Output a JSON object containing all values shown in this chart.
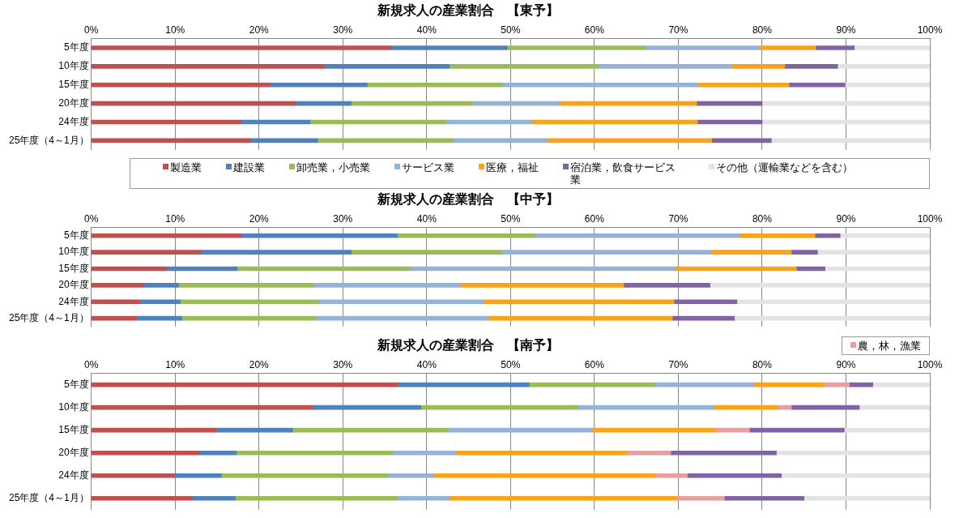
{
  "chart_data": [
    {
      "type": "bar",
      "orientation": "horizontal",
      "stacked": true,
      "title": "新規求人の産業割合　【東予】",
      "categories": [
        "5年度",
        "10年度",
        "15年度",
        "20年度",
        "24年度",
        "25年度（4～1月）"
      ],
      "series": [
        {
          "name": "製造業",
          "color": "#c0504d",
          "values": [
            35.8,
            27.8,
            21.3,
            24.4,
            17.9,
            19.0
          ]
        },
        {
          "name": "建設業",
          "color": "#4f81bd",
          "values": [
            13.8,
            14.9,
            11.6,
            6.6,
            8.2,
            8.0
          ]
        },
        {
          "name": "卸売業，小売業",
          "color": "#9bbb59",
          "values": [
            16.5,
            17.8,
            16.1,
            14.4,
            16.2,
            16.2
          ]
        },
        {
          "name": "サービス業",
          "color": "#95b3d7",
          "values": [
            13.6,
            15.8,
            23.4,
            10.5,
            10.2,
            11.2
          ]
        },
        {
          "name": "医療，福祉",
          "color": "#f9a21b",
          "values": [
            6.7,
            6.4,
            10.8,
            16.3,
            19.8,
            19.6
          ]
        },
        {
          "name": "宿泊業，飲食サービス業",
          "color": "#8064a2",
          "values": [
            4.6,
            6.3,
            6.7,
            7.8,
            7.7,
            7.1
          ]
        },
        {
          "name": "その他（運輸業などを含む）",
          "color": "#e3e3e3",
          "values": [
            9.0,
            11.0,
            10.1,
            20.0,
            20.0,
            18.9
          ]
        }
      ],
      "xlim": [
        0,
        100
      ],
      "xticks": [
        {
          "value": 0,
          "label": "0%"
        },
        {
          "value": 10,
          "label": "10%"
        },
        {
          "value": 20,
          "label": "20%"
        },
        {
          "value": 30,
          "label": "30%"
        },
        {
          "value": 40,
          "label": "40%"
        },
        {
          "value": 50,
          "label": "50%"
        },
        {
          "value": 60,
          "label": "60%"
        },
        {
          "value": 70,
          "label": "70%"
        },
        {
          "value": 80,
          "label": "80%"
        },
        {
          "value": 90,
          "label": "90%"
        },
        {
          "value": 100,
          "label": "100%"
        }
      ],
      "grid": "x",
      "legend": "bottom"
    },
    {
      "type": "bar",
      "orientation": "horizontal",
      "stacked": true,
      "title": "新規求人の産業割合　【中予】",
      "categories": [
        "5年度",
        "10年度",
        "15年度",
        "20年度",
        "24年度",
        "25年度（4～1月）"
      ],
      "series": [
        {
          "color": "#c0504d",
          "values": [
            17.9,
            13.0,
            9.0,
            6.2,
            5.8,
            5.4
          ]
        },
        {
          "color": "#4f81bd",
          "values": [
            18.6,
            18.0,
            8.4,
            4.2,
            4.8,
            5.4
          ]
        },
        {
          "color": "#9bbb59",
          "values": [
            16.5,
            18.0,
            20.7,
            16.1,
            16.5,
            16.0
          ]
        },
        {
          "color": "#95b3d7",
          "values": [
            24.3,
            24.8,
            31.5,
            17.5,
            19.7,
            20.5
          ]
        },
        {
          "color": "#f9a21b",
          "values": [
            9.0,
            9.7,
            14.5,
            19.5,
            22.7,
            22.0
          ]
        },
        {
          "color": "#8064a2",
          "values": [
            3.0,
            3.1,
            3.4,
            10.3,
            7.5,
            7.4
          ]
        },
        {
          "color": "#e3e3e3",
          "values": [
            10.7,
            13.4,
            12.5,
            26.2,
            23.0,
            23.3
          ]
        }
      ],
      "xlim": [
        0,
        100
      ],
      "xticks": [
        {
          "value": 0,
          "label": "0%"
        },
        {
          "value": 10,
          "label": "10%"
        },
        {
          "value": 20,
          "label": "20%"
        },
        {
          "value": 30,
          "label": "30%"
        },
        {
          "value": 40,
          "label": "40%"
        },
        {
          "value": 50,
          "label": "50%"
        },
        {
          "value": 60,
          "label": "60%"
        },
        {
          "value": 70,
          "label": "70%"
        },
        {
          "value": 80,
          "label": "80%"
        },
        {
          "value": 90,
          "label": "90%"
        },
        {
          "value": 100,
          "label": "100%"
        }
      ],
      "grid": "x"
    },
    {
      "type": "bar",
      "orientation": "horizontal",
      "stacked": true,
      "title": "新規求人の産業割合　【南予】",
      "categories": [
        "5年度",
        "10年度",
        "15年度",
        "20年度",
        "24年度",
        "25年度（4～1月）"
      ],
      "series": [
        {
          "color": "#c0504d",
          "values": [
            36.6,
            26.4,
            14.9,
            12.9,
            9.9,
            12.0
          ]
        },
        {
          "color": "#4f81bd",
          "values": [
            15.6,
            12.9,
            9.1,
            4.4,
            5.6,
            5.2
          ]
        },
        {
          "color": "#9bbb59",
          "values": [
            15.0,
            18.7,
            18.5,
            18.7,
            19.9,
            19.3
          ]
        },
        {
          "color": "#95b3d7",
          "values": [
            11.8,
            16.3,
            17.2,
            7.5,
            5.5,
            6.2
          ]
        },
        {
          "color": "#f9a21b",
          "values": [
            8.4,
            7.5,
            14.7,
            20.4,
            26.3,
            27.2
          ]
        },
        {
          "name": "農，林，漁業",
          "color": "#e6a0a0",
          "values": [
            3.0,
            1.7,
            4.1,
            5.2,
            3.9,
            5.6
          ]
        },
        {
          "color": "#8064a2",
          "values": [
            2.8,
            8.1,
            11.3,
            12.6,
            11.2,
            9.5
          ]
        },
        {
          "color": "#e3e3e3",
          "values": [
            6.8,
            8.4,
            10.2,
            18.3,
            17.7,
            15.0
          ]
        }
      ],
      "xlim": [
        0,
        100
      ],
      "xticks": [
        {
          "value": 0,
          "label": "0%"
        },
        {
          "value": 10,
          "label": "10%"
        },
        {
          "value": 20,
          "label": "20%"
        },
        {
          "value": 30,
          "label": "30%"
        },
        {
          "value": 40,
          "label": "40%"
        },
        {
          "value": 50,
          "label": "50%"
        },
        {
          "value": 60,
          "label": "60%"
        },
        {
          "value": 70,
          "label": "70%"
        },
        {
          "value": 80,
          "label": "80%"
        },
        {
          "value": 90,
          "label": "90%"
        },
        {
          "value": 100,
          "label": "100%"
        }
      ],
      "grid": "x",
      "legend": "top right"
    }
  ]
}
